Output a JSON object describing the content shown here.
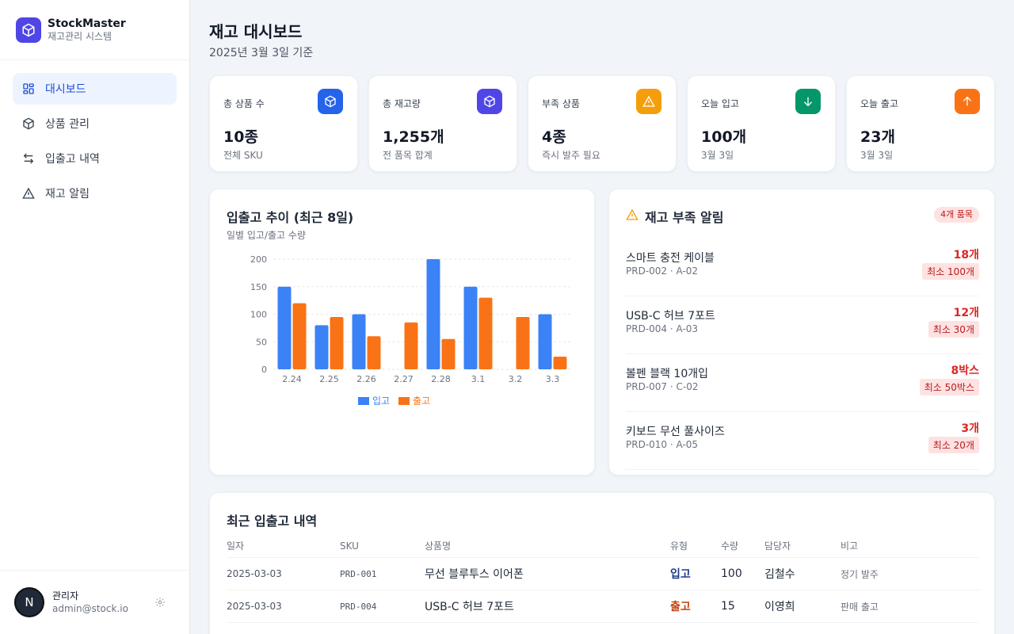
{
  "brand": {
    "name": "StockMaster",
    "subtitle": "재고관리 시스템"
  },
  "nav": [
    {
      "label": "대시보드",
      "icon": "dashboard-icon",
      "active": true
    },
    {
      "label": "상품 관리",
      "icon": "box-icon"
    },
    {
      "label": "입출고 내역",
      "icon": "transfer-icon"
    },
    {
      "label": "재고 알림",
      "icon": "alert-icon"
    }
  ],
  "user": {
    "initial": "N",
    "name": "관리자",
    "email": "admin@stock.io"
  },
  "page": {
    "title": "재고 대시보드",
    "subtitle": "2025년 3월 3일 기준"
  },
  "stats": [
    {
      "label": "총 상품 수",
      "value": "10종",
      "note": "전체 SKU",
      "color": "#2563eb",
      "icon": "box-icon"
    },
    {
      "label": "총 재고량",
      "value": "1,255개",
      "note": "전 품목 합계",
      "color": "#4f46e5",
      "icon": "box-icon"
    },
    {
      "label": "부족 상품",
      "value": "4종",
      "note": "즉시 발주 필요",
      "color": "#f59e0b",
      "icon": "warning-icon"
    },
    {
      "label": "오늘 입고",
      "value": "100개",
      "note": "3월 3일",
      "color": "#059669",
      "icon": "arrow-down-icon"
    },
    {
      "label": "오늘 출고",
      "value": "23개",
      "note": "3월 3일",
      "color": "#f97316",
      "icon": "arrow-up-icon"
    }
  ],
  "chart": {
    "title": "입출고 추이 (최근 8일)",
    "subtitle": "일별 입고/출고 수량"
  },
  "chart_data": {
    "type": "bar",
    "categories": [
      "2.24",
      "2.25",
      "2.26",
      "2.27",
      "2.28",
      "3.1",
      "3.2",
      "3.3"
    ],
    "series": [
      {
        "name": "입고",
        "color": "#3b82f6",
        "values": [
          150,
          80,
          100,
          0,
          200,
          150,
          0,
          100
        ]
      },
      {
        "name": "출고",
        "color": "#f97316",
        "values": [
          120,
          95,
          60,
          85,
          55,
          130,
          95,
          23
        ]
      }
    ],
    "ylim": [
      0,
      200
    ],
    "yticks": [
      0,
      50,
      100,
      150,
      200
    ],
    "grid": true,
    "legend": "bottom"
  },
  "alerts": {
    "title": "재고 부족 알림",
    "badge": "4개 품목",
    "items": [
      {
        "name": "스마트 충전 케이블",
        "code": "PRD-002 · A-02",
        "qty": "18개",
        "min": "최소 100개"
      },
      {
        "name": "USB-C 허브 7포트",
        "code": "PRD-004 · A-03",
        "qty": "12개",
        "min": "최소 30개"
      },
      {
        "name": "볼펜 블랙 10개입",
        "code": "PRD-007 · C-02",
        "qty": "8박스",
        "min": "최소 50박스"
      },
      {
        "name": "키보드 무선 풀사이즈",
        "code": "PRD-010 · A-05",
        "qty": "3개",
        "min": "최소 20개"
      }
    ]
  },
  "recent": {
    "title": "최근 입출고 내역",
    "headers": [
      "일자",
      "SKU",
      "상품명",
      "유형",
      "수량",
      "담당자",
      "비고"
    ],
    "rows": [
      {
        "date": "2025-03-03",
        "sku": "PRD-001",
        "name": "무선 블루투스 이어폰",
        "type": "입고",
        "qty": "100",
        "staff": "김철수",
        "note": "정기 발주"
      },
      {
        "date": "2025-03-03",
        "sku": "PRD-004",
        "name": "USB-C 허브 7포트",
        "type": "출고",
        "qty": "15",
        "staff": "이영희",
        "note": "판매 출고"
      }
    ]
  }
}
